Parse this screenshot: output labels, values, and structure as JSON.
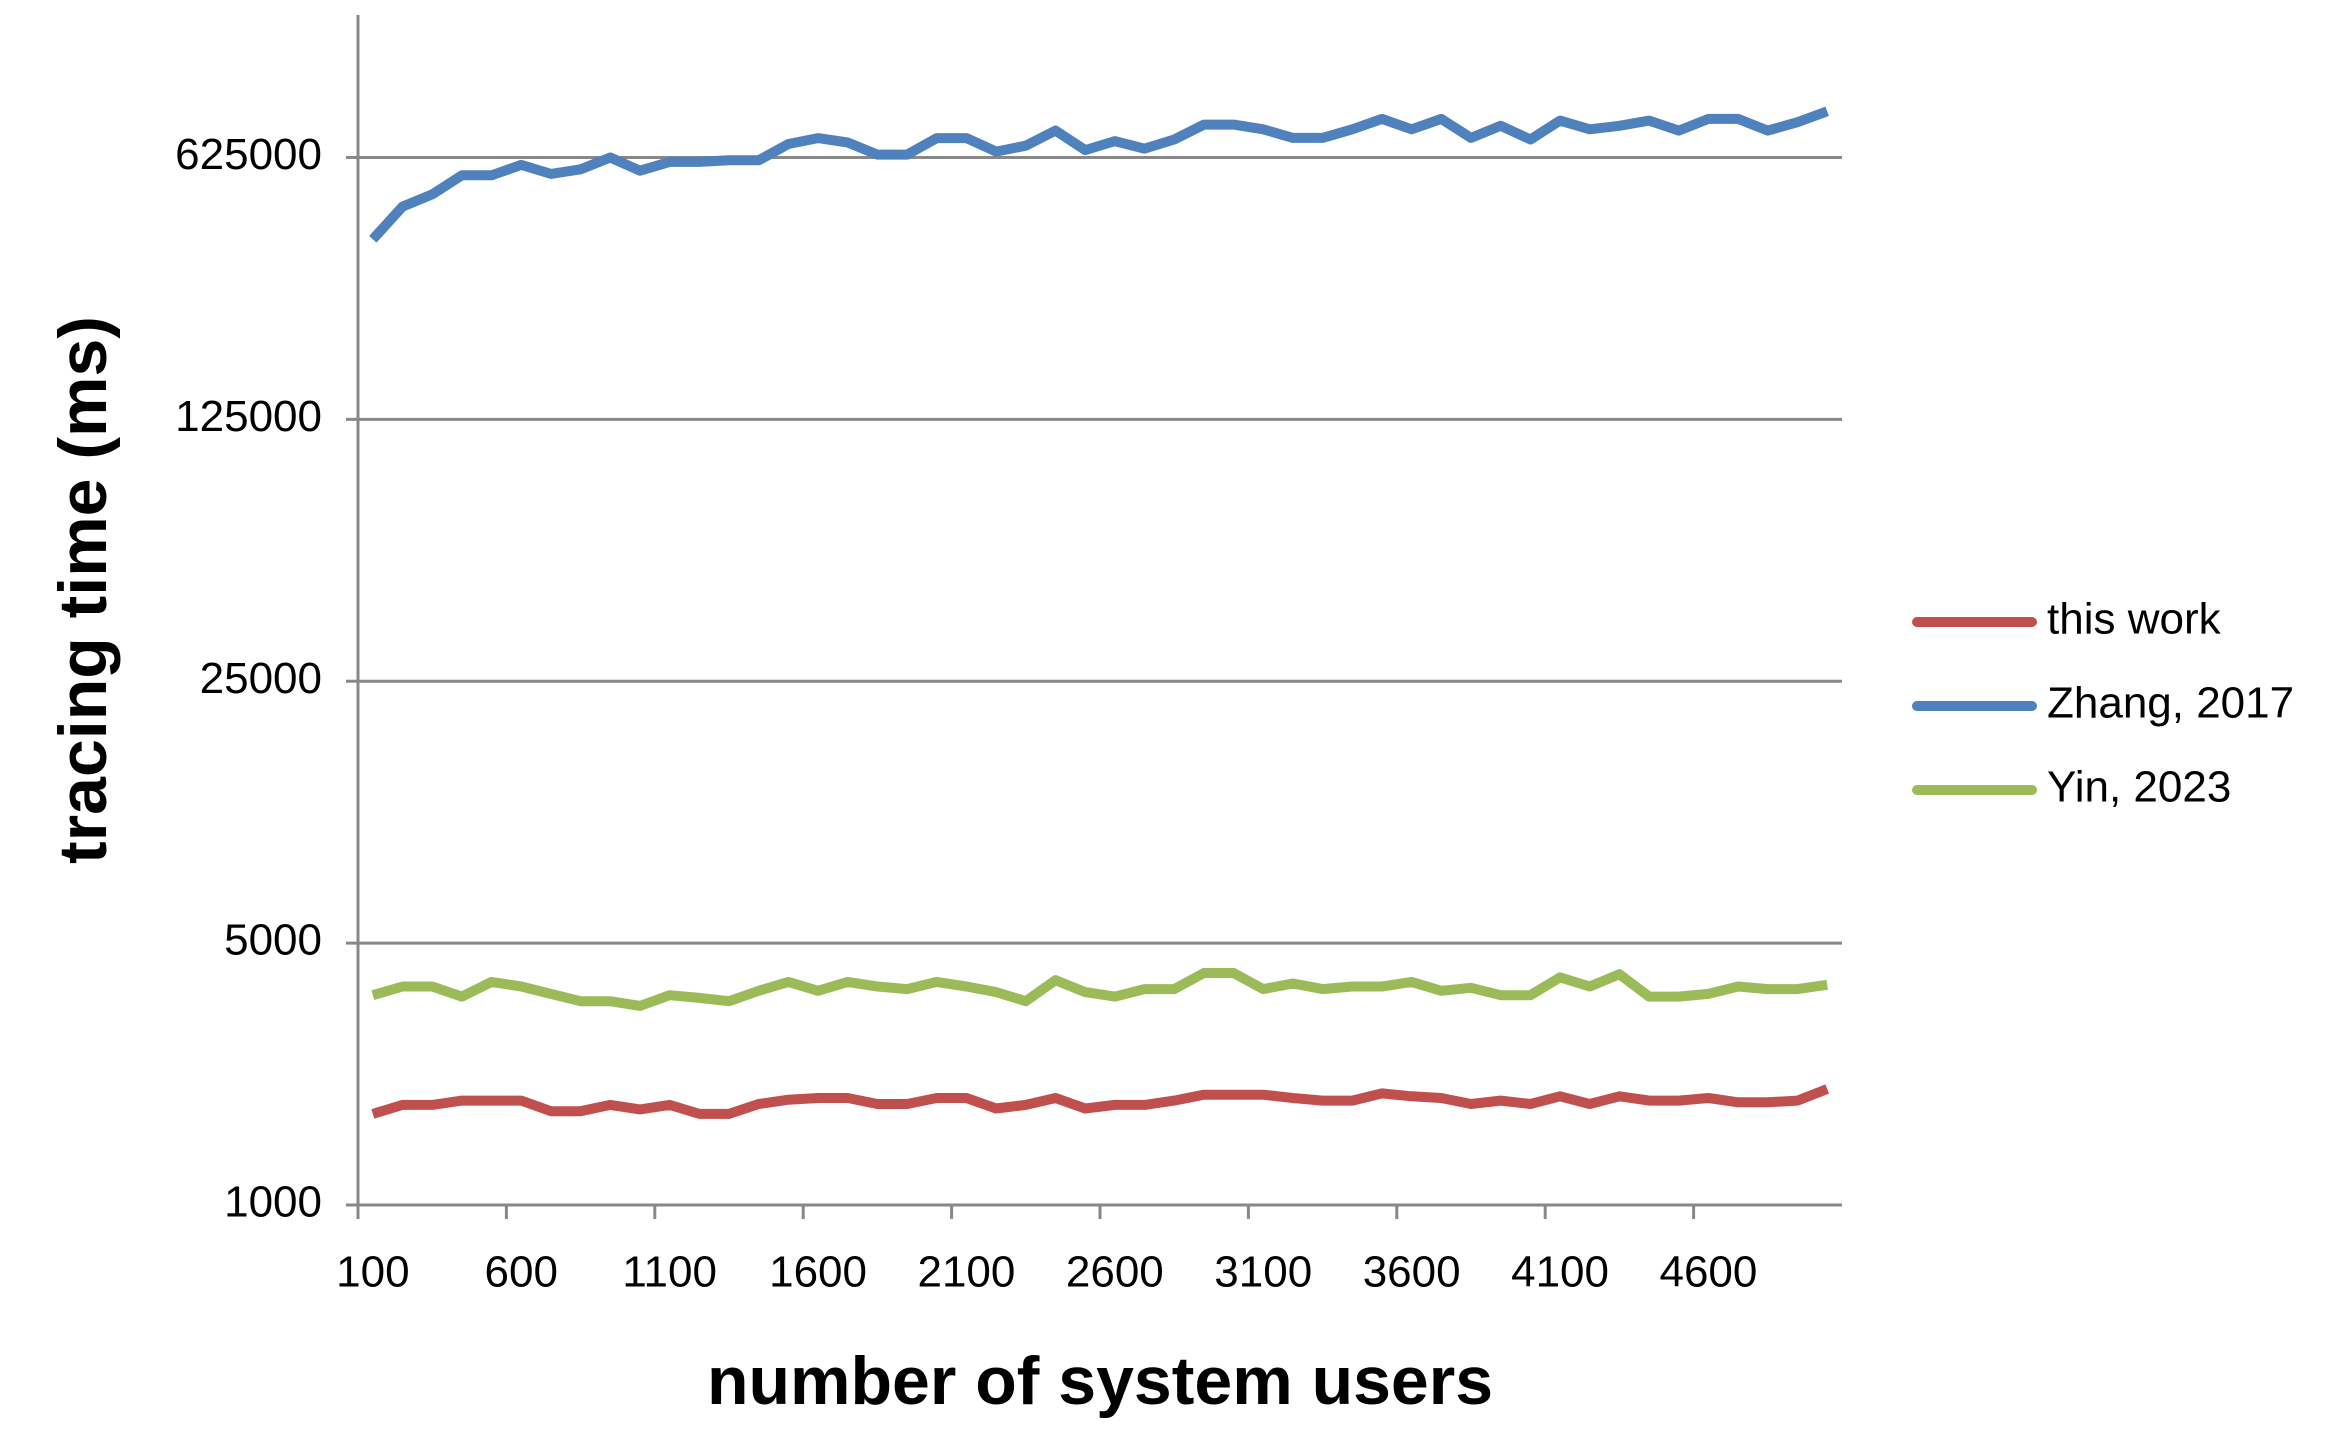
{
  "chart_data": {
    "type": "line",
    "x_label": "number of system users",
    "y_label": "tracing time (ms)",
    "categories": [
      "100",
      null,
      null,
      null,
      null,
      "600",
      null,
      null,
      null,
      null,
      "1100",
      null,
      null,
      null,
      null,
      "1600",
      null,
      null,
      null,
      null,
      "2100",
      null,
      null,
      null,
      null,
      "2600",
      null,
      null,
      null,
      null,
      "3100",
      null,
      null,
      null,
      null,
      "3600",
      null,
      null,
      null,
      null,
      "4100",
      null,
      null,
      null,
      null,
      "4600",
      null,
      null,
      null,
      null
    ],
    "yscale": "log",
    "ylim": [
      1000,
      1500000
    ],
    "yticks": [
      1000,
      5000,
      25000,
      125000,
      625000
    ],
    "grid": true,
    "legend": "right",
    "series": [
      {
        "name": "this work",
        "color": "#c0504d",
        "values": [
          1750,
          1850,
          1850,
          1900,
          1900,
          1900,
          1780,
          1780,
          1850,
          1800,
          1850,
          1750,
          1750,
          1860,
          1910,
          1930,
          1930,
          1860,
          1860,
          1930,
          1930,
          1810,
          1850,
          1930,
          1810,
          1850,
          1850,
          1900,
          1970,
          1970,
          1970,
          1930,
          1900,
          1900,
          1985,
          1950,
          1930,
          1860,
          1900,
          1860,
          1950,
          1860,
          1950,
          1900,
          1900,
          1930,
          1880,
          1880,
          1900,
          2040
        ]
      },
      {
        "name": "Zhang, 2017",
        "color": "#4f81bd",
        "values": [
          378000,
          462000,
          498000,
          560000,
          560000,
          597000,
          565000,
          581000,
          625000,
          576000,
          608000,
          608000,
          614000,
          614000,
          679000,
          704000,
          685000,
          636000,
          636000,
          704000,
          704000,
          648000,
          672000,
          737000,
          654000,
          691000,
          660000,
          698000,
          765000,
          765000,
          743000,
          705000,
          705000,
          743000,
          792000,
          743000,
          792000,
          705000,
          759000,
          698000,
          784000,
          743000,
          759000,
          784000,
          737000,
          792000,
          792000,
          737000,
          776000,
          830000
        ]
      },
      {
        "name": "Yin, 2023",
        "color": "#9bbb59",
        "values": [
          3630,
          3830,
          3830,
          3600,
          3940,
          3830,
          3660,
          3500,
          3500,
          3400,
          3630,
          3570,
          3500,
          3730,
          3940,
          3730,
          3940,
          3830,
          3770,
          3940,
          3830,
          3700,
          3500,
          3980,
          3700,
          3600,
          3770,
          3770,
          4160,
          4160,
          3770,
          3900,
          3770,
          3830,
          3830,
          3940,
          3730,
          3800,
          3630,
          3630,
          4050,
          3830,
          4130,
          3600,
          3600,
          3660,
          3830,
          3770,
          3770,
          3870
        ]
      }
    ]
  }
}
